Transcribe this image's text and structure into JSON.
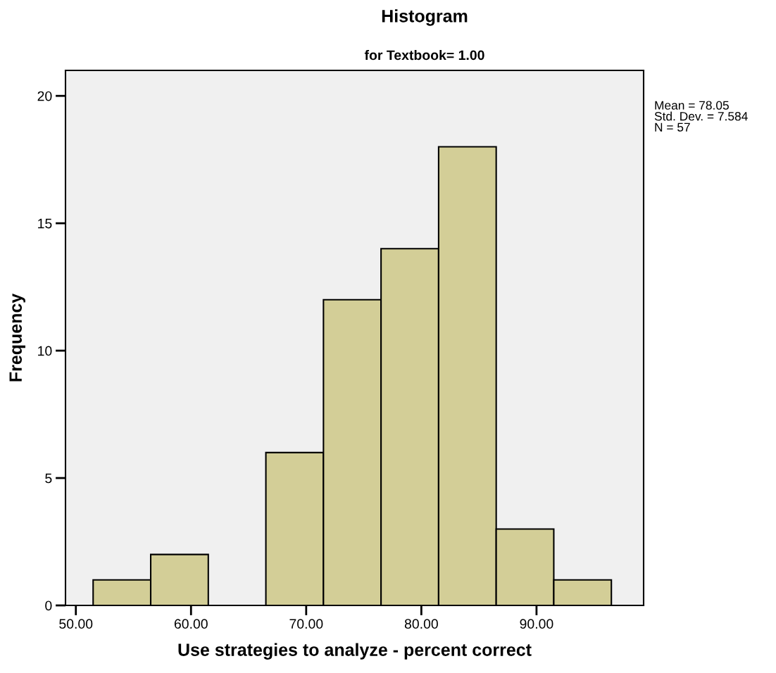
{
  "chart_data": {
    "type": "histogram",
    "title": "Histogram",
    "subtitle": "for Textbook= 1.00",
    "xlabel": "Use strategies to analyze - percent correct",
    "ylabel": "Frequency",
    "bins": [
      51.5,
      56.5,
      61.5,
      66.5,
      71.5,
      76.5,
      81.5,
      86.5,
      91.5,
      96.5
    ],
    "values": [
      1,
      2,
      0,
      6,
      12,
      14,
      18,
      3,
      1
    ],
    "color": "#d3ce97",
    "xlim": [
      49.1,
      99.3
    ],
    "xticks": [
      {
        "value": 50,
        "label": "50.00"
      },
      {
        "value": 60,
        "label": "60.00"
      },
      {
        "value": 70,
        "label": "70.00"
      },
      {
        "value": 80,
        "label": "80.00"
      },
      {
        "value": 90,
        "label": "90.00"
      }
    ],
    "ylim": [
      0,
      21
    ],
    "yticks": [
      0,
      5,
      10,
      15,
      20
    ],
    "grid": false,
    "legend": false,
    "annotations": [
      "Mean = 78.05\nStd. Dev. = 7.584\nN = 57"
    ]
  }
}
